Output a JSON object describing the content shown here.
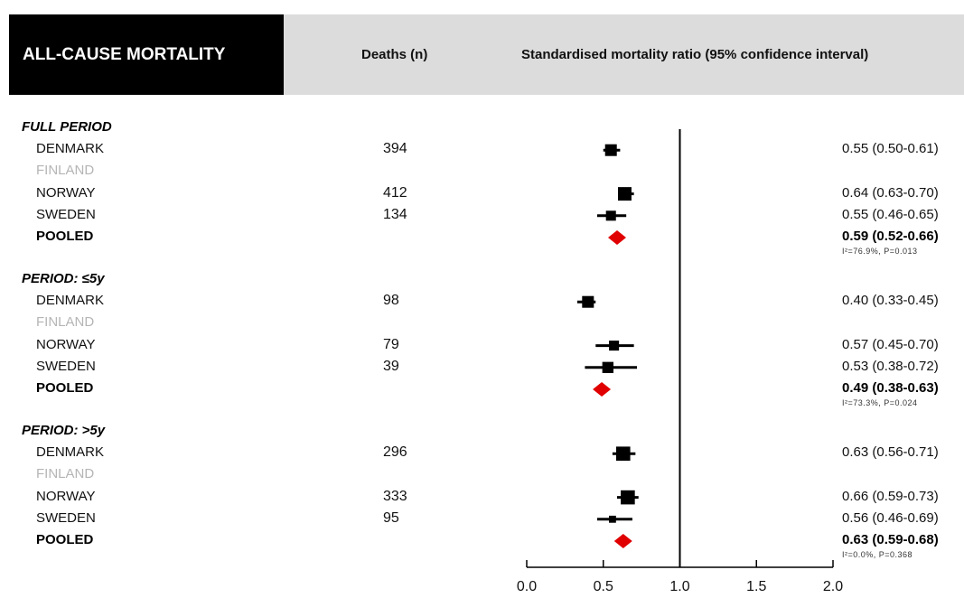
{
  "header": {
    "title": "ALL-CAUSE MORTALITY",
    "deaths_col": "Deaths (n)",
    "smr_col": "Standardised mortality ratio (95% confidence interval)"
  },
  "colors": {
    "marker": "#000000",
    "pooled": "#e00000",
    "muted_text": "#b5b5b5",
    "title_bg": "#000000",
    "header_bg": "#dcdcdc"
  },
  "chart_data": {
    "type": "forest",
    "x_axis": {
      "ticks": [
        0.0,
        0.5,
        1.0,
        1.5,
        2.0
      ],
      "tick_labels": [
        "0.0",
        "0.5",
        "1.0",
        "1.5",
        "2.0"
      ],
      "xlim": [
        0,
        2
      ],
      "reference_line": 1.0
    },
    "groups": [
      {
        "name": "FULL PERIOD",
        "rows": [
          {
            "label": "DENMARK",
            "n": "394",
            "est": 0.55,
            "lo": 0.5,
            "hi": 0.61,
            "ci_text": "0.55 (0.50-0.61)",
            "size": 1.0
          },
          {
            "label": "FINLAND",
            "muted": true
          },
          {
            "label": "NORWAY",
            "n": "412",
            "est": 0.64,
            "lo": 0.63,
            "hi": 0.7,
            "ci_text": "0.64 (0.63-0.70)",
            "size": 1.15
          },
          {
            "label": "SWEDEN",
            "n": "134",
            "est": 0.55,
            "lo": 0.46,
            "hi": 0.65,
            "ci_text": "0.55 (0.46-0.65)",
            "size": 0.85
          },
          {
            "label": "POOLED",
            "pooled": true,
            "est": 0.59,
            "lo": 0.52,
            "hi": 0.66,
            "ci_text": "0.59 (0.52-0.66)",
            "het": "I²=76.9%, P=0.013"
          }
        ]
      },
      {
        "name": "PERIOD: ≤5y",
        "rows": [
          {
            "label": "DENMARK",
            "n": "98",
            "est": 0.4,
            "lo": 0.33,
            "hi": 0.45,
            "ci_text": "0.40 (0.33-0.45)",
            "size": 1.0
          },
          {
            "label": "FINLAND",
            "muted": true
          },
          {
            "label": "NORWAY",
            "n": "79",
            "est": 0.57,
            "lo": 0.45,
            "hi": 0.7,
            "ci_text": "0.57 (0.45-0.70)",
            "size": 0.85
          },
          {
            "label": "SWEDEN",
            "n": "39",
            "est": 0.53,
            "lo": 0.38,
            "hi": 0.72,
            "ci_text": "0.53 (0.38-0.72)",
            "size": 0.95
          },
          {
            "label": "POOLED",
            "pooled": true,
            "est": 0.49,
            "lo": 0.38,
            "hi": 0.63,
            "ci_text": "0.49 (0.38-0.63)",
            "het": "I²=73.3%, P=0.024"
          }
        ]
      },
      {
        "name": "PERIOD: >5y",
        "rows": [
          {
            "label": "DENMARK",
            "n": "296",
            "est": 0.63,
            "lo": 0.56,
            "hi": 0.71,
            "ci_text": "0.63 (0.56-0.71)",
            "size": 1.2
          },
          {
            "label": "FINLAND",
            "muted": true
          },
          {
            "label": "NORWAY",
            "n": "333",
            "est": 0.66,
            "lo": 0.59,
            "hi": 0.73,
            "ci_text": "0.66 (0.59-0.73)",
            "size": 1.2
          },
          {
            "label": "SWEDEN",
            "n": "95",
            "est": 0.56,
            "lo": 0.46,
            "hi": 0.69,
            "ci_text": "0.56 (0.46-0.69)",
            "size": 0.6
          },
          {
            "label": "POOLED",
            "pooled": true,
            "est": 0.63,
            "lo": 0.59,
            "hi": 0.68,
            "ci_text": "0.63 (0.59-0.68)",
            "het": "I²=0.0%, P=0.368"
          }
        ]
      }
    ]
  }
}
